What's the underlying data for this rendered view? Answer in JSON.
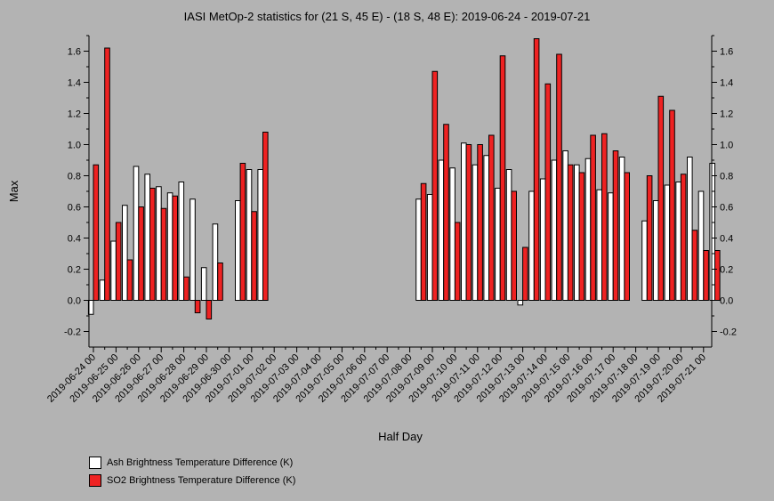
{
  "chart_data": {
    "type": "bar",
    "title": "IASI MetOp-2 statistics for (21 S, 45 E) - (18 S, 48 E): 2019-06-24 - 2019-07-21",
    "xlabel": "Half Day",
    "ylabel": "Max",
    "ylim": [
      -0.3,
      1.7
    ],
    "yticks": [
      "-0.2",
      "0.0",
      "0.2",
      "0.4",
      "0.6",
      "0.8",
      "1.0",
      "1.2",
      "1.4",
      "1.6"
    ],
    "grid": false,
    "legend_position": "bottom-left",
    "tick_labels": [
      "2019-06-24 00",
      "2019-06-25 00",
      "2019-06-26 00",
      "2019-06-27 00",
      "2019-06-28 00",
      "2019-06-29 00",
      "2019-06-30 00",
      "2019-07-01 00",
      "2019-07-02 00",
      "2019-07-03 00",
      "2019-07-04 00",
      "2019-07-05 00",
      "2019-07-06 00",
      "2019-07-07 00",
      "2019-07-08 00",
      "2019-07-09 00",
      "2019-07-10 00",
      "2019-07-11 00",
      "2019-07-12 00",
      "2019-07-13 00",
      "2019-07-14 00",
      "2019-07-15 00",
      "2019-07-16 00",
      "2019-07-17 00",
      "2019-07-18 00",
      "2019-07-19 00",
      "2019-07-20 00",
      "2019-07-21 00"
    ],
    "series": [
      {
        "name": "Ash Brightness Temperature Difference (K)",
        "color": "#ffffff",
        "values": [
          -0.09,
          0.13,
          0.38,
          0.61,
          0.86,
          0.81,
          0.73,
          0.69,
          0.76,
          0.65,
          0.21,
          0.49,
          null,
          0.64,
          0.84,
          0.84,
          null,
          null,
          null,
          null,
          null,
          null,
          null,
          null,
          null,
          null,
          null,
          null,
          null,
          0.65,
          0.68,
          0.9,
          0.85,
          1.01,
          0.87,
          0.93,
          0.72,
          0.84,
          -0.03,
          0.7,
          0.78,
          0.9,
          0.96,
          0.87,
          0.91,
          0.71,
          0.69,
          0.92,
          null,
          0.51,
          0.64,
          0.74,
          0.76,
          0.92,
          0.7,
          0.88
        ]
      },
      {
        "name": "SO2 Brightness Temperature Difference (K)",
        "color": "#ee2222",
        "values": [
          0.87,
          1.62,
          0.5,
          0.26,
          0.6,
          0.72,
          0.59,
          0.67,
          0.15,
          -0.08,
          -0.12,
          0.24,
          null,
          0.88,
          0.57,
          1.08,
          null,
          null,
          null,
          null,
          null,
          null,
          null,
          null,
          null,
          null,
          null,
          null,
          null,
          0.75,
          1.47,
          1.13,
          0.5,
          1.0,
          1.0,
          1.06,
          1.57,
          0.7,
          0.34,
          1.68,
          1.39,
          1.58,
          0.87,
          0.82,
          1.06,
          1.07,
          0.96,
          0.82,
          null,
          0.8,
          1.31,
          1.22,
          0.81,
          0.45,
          0.32,
          0.32
        ]
      }
    ]
  },
  "legend": {
    "ash": "Ash Brightness Temperature Difference (K)",
    "so2": "SO2 Brightness Temperature Difference (K)"
  }
}
